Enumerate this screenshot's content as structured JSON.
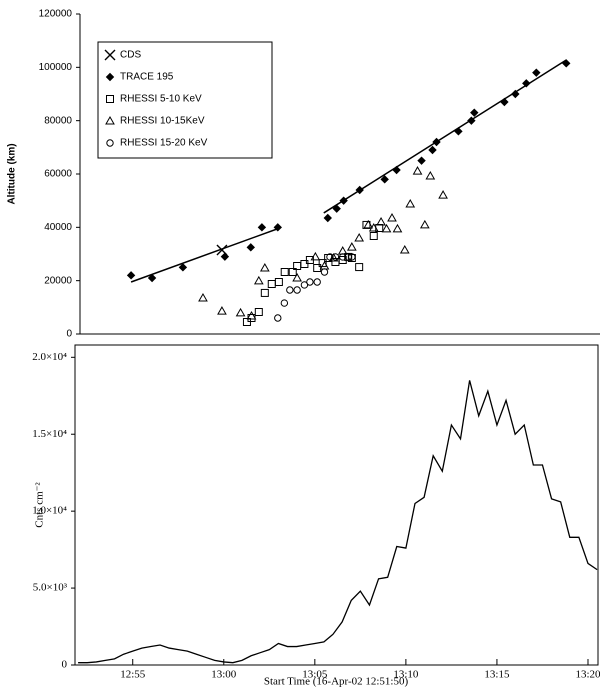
{
  "chart_data": [
    {
      "type": "scatter",
      "ylabel": "Altitude (km)",
      "xlim": [
        52.2,
        80.7
      ],
      "ylim": [
        0,
        120000
      ],
      "yticks": [
        0,
        20000,
        40000,
        60000,
        80000,
        100000,
        120000
      ],
      "legend": "upper left",
      "series": [
        {
          "name": "CDS",
          "marker": "x",
          "color": "#000",
          "x": [
            59.98
          ],
          "values": [
            31500
          ]
        },
        {
          "name": "TRACE 195",
          "marker": "diamond",
          "color": "#000",
          "x": [
            55.0,
            56.15,
            57.84,
            60.14,
            61.56,
            62.17,
            63.04,
            65.78,
            66.27,
            66.65,
            67.53,
            68.9,
            69.55,
            70.92,
            71.52,
            71.74,
            72.94,
            73.65,
            73.81,
            75.46,
            76.06,
            76.66,
            77.21,
            78.85
          ],
          "values": [
            22000,
            21000,
            25000,
            29000,
            32500,
            40000,
            40000,
            43500,
            47000,
            50000,
            54000,
            58000,
            61500,
            65000,
            69000,
            72000,
            76000,
            80000,
            83000,
            87000,
            90000,
            94000,
            98000,
            101500
          ]
        },
        {
          "name": "RHESSI 5-10 KeV",
          "marker": "square",
          "color": "#000",
          "x": [
            61.35,
            61.6,
            62.0,
            62.33,
            62.71,
            63.1,
            63.42,
            63.86,
            64.1,
            64.5,
            64.8,
            65.2,
            65.5,
            65.8,
            66.2,
            66.6,
            66.9,
            67.1,
            67.5,
            67.9,
            68.3,
            68.6
          ],
          "values": [
            4500,
            6000,
            8250,
            15400,
            18750,
            19500,
            23250,
            23250,
            25500,
            26250,
            27750,
            24750,
            26600,
            28500,
            27000,
            27750,
            28900,
            28500,
            25100,
            40900,
            36750,
            39750
          ]
        },
        {
          "name": "RHESSI 10-15KeV",
          "marker": "triangle",
          "color": "#000",
          "x": [
            58.94,
            59.98,
            61.0,
            61.6,
            62.0,
            62.33,
            64.1,
            65.1,
            65.6,
            66.1,
            66.6,
            67.1,
            67.5,
            68.0,
            68.3,
            68.7,
            69.0,
            69.3,
            69.6,
            70.0,
            70.3,
            70.7,
            71.1,
            71.4,
            72.1
          ],
          "values": [
            13500,
            8600,
            7900,
            6750,
            19900,
            24750,
            21000,
            28900,
            25500,
            28500,
            31100,
            32600,
            36000,
            40900,
            39750,
            42000,
            39400,
            43500,
            39400,
            31500,
            48750,
            61100,
            40900,
            59250,
            52100
          ]
        },
        {
          "name": "RHESSI 15-20 KeV",
          "marker": "circle",
          "color": "#000",
          "x": [
            63.04,
            63.4,
            63.7,
            64.1,
            64.5,
            64.8,
            65.2,
            65.6,
            65.9,
            66.2,
            66.6,
            66.9,
            67.1
          ],
          "values": [
            6000,
            11600,
            16500,
            16500,
            18400,
            19500,
            19500,
            23250,
            28900,
            28900,
            28900,
            28900,
            28900
          ]
        }
      ],
      "fit_lines": [
        {
          "x": [
            55.0,
            63.15
          ],
          "values": [
            19500,
            39750
          ]
        },
        {
          "x": [
            65.56,
            78.85
          ],
          "values": [
            45400,
            102750
          ]
        }
      ]
    },
    {
      "type": "line",
      "ylabel": "Cnts cm⁻²",
      "xlabel": "Start Time (16-Apr-02 12:51:50)",
      "xlim": [
        51.83,
        80.55
      ],
      "ylim": [
        0,
        20800
      ],
      "yticks": [
        0,
        {
          "value": 5000,
          "label": "5.0×10³"
        },
        {
          "value": 10000,
          "label": "1.0×10⁴"
        },
        {
          "value": 15000,
          "label": "1.5×10⁴"
        },
        {
          "value": 20000,
          "label": "2.0×10⁴"
        }
      ],
      "xticks": [
        {
          "value": 55,
          "label": "12:55"
        },
        {
          "value": 60,
          "label": "13:00"
        },
        {
          "value": 65,
          "label": "13:05"
        },
        {
          "value": 70,
          "label": "13:10"
        },
        {
          "value": 75,
          "label": "13:15"
        },
        {
          "value": 80,
          "label": "13:20"
        }
      ],
      "series": [
        {
          "color": "#000",
          "x": [
            52,
            52.5,
            53,
            53.5,
            54,
            54.5,
            55,
            55.5,
            56,
            56.5,
            57,
            57.5,
            58,
            58.5,
            59,
            59.5,
            60,
            60.5,
            61,
            61.5,
            62,
            62.5,
            63,
            63.5,
            64,
            64.5,
            65,
            65.5,
            66,
            66.5,
            67,
            67.5,
            68,
            68.5,
            69,
            69.5,
            70,
            70.5,
            71,
            71.5,
            72,
            72.5,
            73,
            73.5,
            74,
            74.5,
            75,
            75.5,
            76,
            76.5,
            77,
            77.5,
            78,
            78.5,
            79,
            79.5,
            80,
            80.5
          ],
          "values": [
            150,
            150,
            200,
            300,
            400,
            700,
            900,
            1100,
            1200,
            1300,
            1100,
            1000,
            900,
            700,
            500,
            300,
            200,
            150,
            300,
            600,
            800,
            1000,
            1400,
            1200,
            1200,
            1300,
            1400,
            1500,
            2000,
            2800,
            4200,
            4800,
            3900,
            5600,
            5700,
            7700,
            7600,
            10500,
            10900,
            13600,
            12600,
            15600,
            14700,
            18500,
            16200,
            17800,
            15600,
            17200,
            15000,
            15600,
            13000,
            13000,
            10800,
            10600,
            8300,
            8300,
            6600,
            6200
          ]
        }
      ]
    }
  ]
}
